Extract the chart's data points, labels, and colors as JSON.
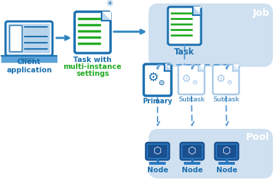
{
  "bg_color": "#ffffff",
  "light_blue_bg": "#cfe0f0",
  "blue_dark": "#1a6faf",
  "blue_mid": "#2e86c1",
  "blue_light": "#a8c8e8",
  "blue_icon_fill": "#1a6faf",
  "green_line": "#22aa22",
  "arrow_color": "#2e86c1",
  "dashed_arrow_color": "#5b9bd5",
  "text_client": "Client\napplication",
  "text_task_with_line1": "Task with",
  "text_task_with_line2": "multi-instance",
  "text_task_with_line3": "settings",
  "text_job": "Job",
  "text_task": "Task",
  "text_primary": "Primary",
  "text_subtask": "Subtask",
  "text_pool": "Pool",
  "text_node": "Node",
  "figw": 3.98,
  "figh": 2.67,
  "dpi": 100
}
